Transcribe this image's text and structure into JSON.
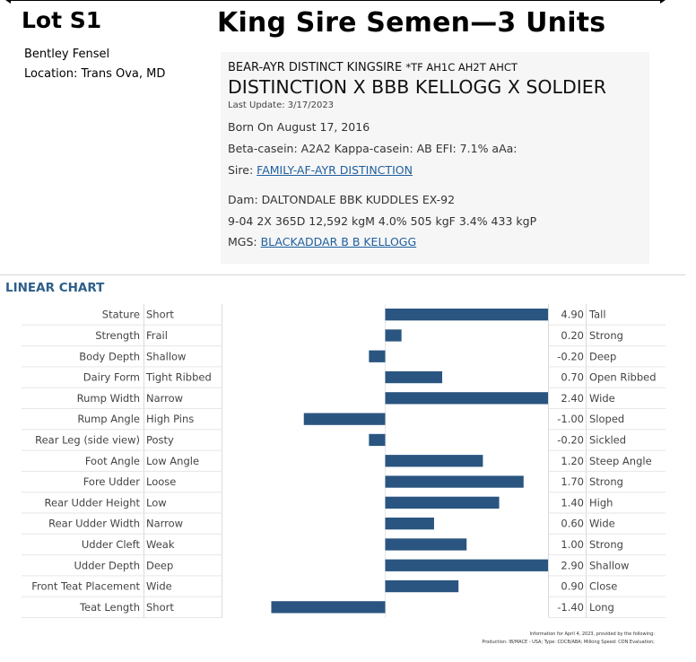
{
  "header": {
    "lot": "Lot S1",
    "title": "King Sire Semen—3 Units",
    "owner": "Bentley Fensel",
    "location": "Location: Trans Ova, MD"
  },
  "bull": {
    "registered_name": "BEAR-AYR DISTINCT KINGSIRE",
    "name_suffix": "*TF AH1C AH2T AHCT",
    "pedigree": "DISTINCTION X BBB KELLOGG X SOLDIER",
    "last_update": "Last Update: 3/17/2023",
    "born": "Born On August 17, 2016",
    "genetics": "Beta-casein: A2A2 Kappa-casein: AB EFI: 7.1% aAa:",
    "sire_label": "Sire:",
    "sire_name": "FAMILY-AF-AYR DISTINCTION",
    "dam": "Dam: DALTONDALE BBK KUDDLES   EX-92",
    "dam_record": "9-04  2X  365D  12,592  kgM  4.0%  505  kgF  3.4%  433  kgP",
    "mgs_label": "MGS:",
    "mgs_name": "BLACKADDAR B B KELLOGG"
  },
  "linear_chart_title": "LINEAR CHART",
  "chart_data": {
    "type": "bar",
    "orientation": "horizontal",
    "xlim": [
      -2,
      2
    ],
    "colors": {
      "bar": "#2a5580"
    },
    "traits": [
      {
        "trait": "Stature",
        "low": "Short",
        "value": 4.9,
        "value_label": "4.90",
        "high": "Tall"
      },
      {
        "trait": "Strength",
        "low": "Frail",
        "value": 0.2,
        "value_label": "0.20",
        "high": "Strong"
      },
      {
        "trait": "Body Depth",
        "low": "Shallow",
        "value": -0.2,
        "value_label": "-0.20",
        "high": "Deep"
      },
      {
        "trait": "Dairy Form",
        "low": "Tight Ribbed",
        "value": 0.7,
        "value_label": "0.70",
        "high": "Open Ribbed"
      },
      {
        "trait": "Rump Width",
        "low": "Narrow",
        "value": 2.4,
        "value_label": "2.40",
        "high": "Wide"
      },
      {
        "trait": "Rump Angle",
        "low": "High Pins",
        "value": -1.0,
        "value_label": "-1.00",
        "high": "Sloped"
      },
      {
        "trait": "Rear Leg (side view)",
        "low": "Posty",
        "value": -0.2,
        "value_label": "-0.20",
        "high": "Sickled"
      },
      {
        "trait": "Foot Angle",
        "low": "Low Angle",
        "value": 1.2,
        "value_label": "1.20",
        "high": "Steep Angle"
      },
      {
        "trait": "Fore Udder",
        "low": "Loose",
        "value": 1.7,
        "value_label": "1.70",
        "high": "Strong"
      },
      {
        "trait": "Rear Udder Height",
        "low": "Low",
        "value": 1.4,
        "value_label": "1.40",
        "high": "High"
      },
      {
        "trait": "Rear Udder Width",
        "low": "Narrow",
        "value": 0.6,
        "value_label": "0.60",
        "high": "Wide"
      },
      {
        "trait": "Udder Cleft",
        "low": "Weak",
        "value": 1.0,
        "value_label": "1.00",
        "high": "Strong"
      },
      {
        "trait": "Udder Depth",
        "low": "Deep",
        "value": 2.9,
        "value_label": "2.90",
        "high": "Shallow"
      },
      {
        "trait": "Front Teat Placement",
        "low": "Wide",
        "value": 0.9,
        "value_label": "0.90",
        "high": "Close"
      },
      {
        "trait": "Teat Length",
        "low": "Short",
        "value": -1.4,
        "value_label": "-1.40",
        "high": "Long"
      }
    ]
  },
  "footnote": {
    "line1": "Information for April 4, 2023, provided by the following:",
    "line2": "Production: IB/MACE - USA; Type: CDCB/ABA; Milking Speed: CDN Evaluation;"
  }
}
